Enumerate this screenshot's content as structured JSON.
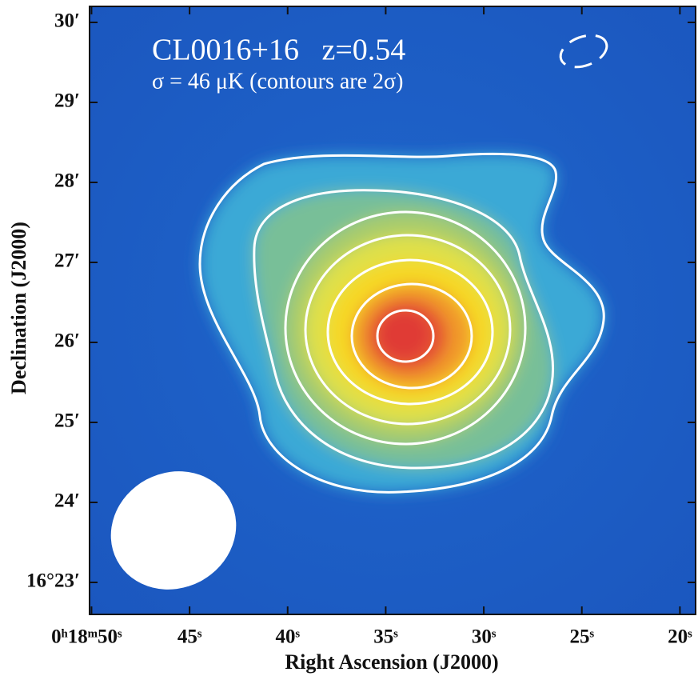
{
  "chart_data": {
    "type": "image",
    "title": "CL0016+16   z=0.54",
    "subtitle": "σ = 46 μK (contours are 2σ)",
    "x_label": "Right Ascension (J2000)",
    "y_label": "Declination (J2000)",
    "xlim": [
      50.1,
      19.2
    ],
    "ylim": [
      22.6,
      30.2
    ],
    "xticks": [
      {
        "value": 50,
        "label": "0ʰ18ᵐ50ˢ"
      },
      {
        "value": 45,
        "label": "45ˢ"
      },
      {
        "value": 40,
        "label": "40ˢ"
      },
      {
        "value": 35,
        "label": "35ˢ"
      },
      {
        "value": 30,
        "label": "30ˢ"
      },
      {
        "value": 25,
        "label": "25ˢ"
      },
      {
        "value": 20,
        "label": "20ˢ"
      }
    ],
    "yticks": [
      {
        "value": 30,
        "label": "30′"
      },
      {
        "value": 29,
        "label": "29′"
      },
      {
        "value": 28,
        "label": "28′"
      },
      {
        "value": 27,
        "label": "27′"
      },
      {
        "value": 26,
        "label": "26′"
      },
      {
        "value": 25,
        "label": "25′"
      },
      {
        "value": 24,
        "label": "24′"
      },
      {
        "value": 23,
        "label": "16°23′"
      }
    ]
  }
}
